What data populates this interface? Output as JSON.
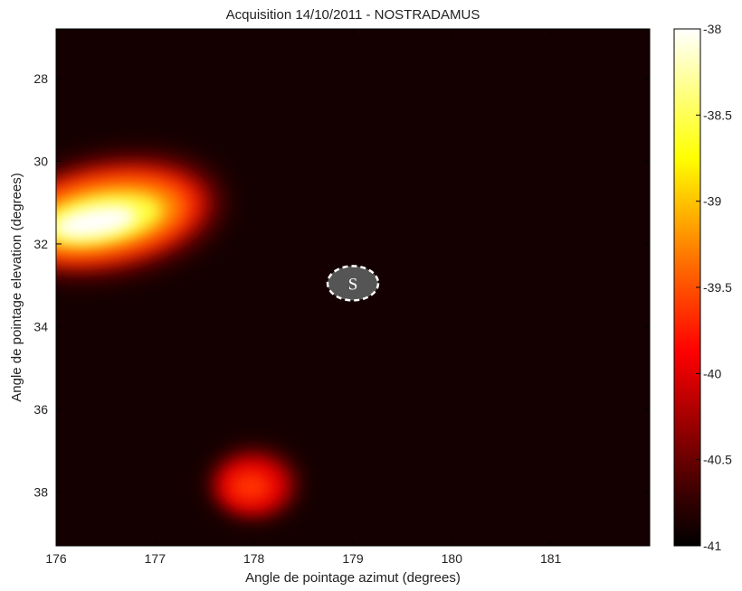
{
  "chart_data": {
    "type": "heatmap",
    "title": "Acquisition 14/10/2011 - NOSTRADAMUS",
    "xlabel": "Angle de pointage azimut (degrees)",
    "ylabel": "Angle de pointage elevation (degrees)",
    "xlim": [
      176,
      182
    ],
    "ylim": [
      39.3,
      26.8
    ],
    "x_ticks": [
      176,
      177,
      178,
      179,
      180,
      181
    ],
    "x_tick_labels": [
      "176",
      "177",
      "178",
      "179",
      "180",
      "181"
    ],
    "y_ticks": [
      28,
      30,
      32,
      34,
      36,
      38
    ],
    "y_tick_labels": [
      "28",
      "30",
      "32",
      "34",
      "36",
      "38"
    ],
    "colorbar": {
      "colormap": "hot",
      "range": [
        -41,
        -38
      ],
      "ticks": [
        -38,
        -38.5,
        -39,
        -39.5,
        -40,
        -40.5,
        -41
      ],
      "tick_labels": [
        "-38",
        "-38.5",
        "-39",
        "-39.5",
        "-40",
        "-40.5",
        "-41"
      ]
    },
    "hotspots": [
      {
        "x": 176.45,
        "y": 31.4,
        "peak": -38.0
      },
      {
        "x": 178.0,
        "y": 37.8,
        "peak": -40.0
      }
    ],
    "annotation": {
      "label": "S",
      "x": 179.0,
      "y": 32.95
    }
  }
}
